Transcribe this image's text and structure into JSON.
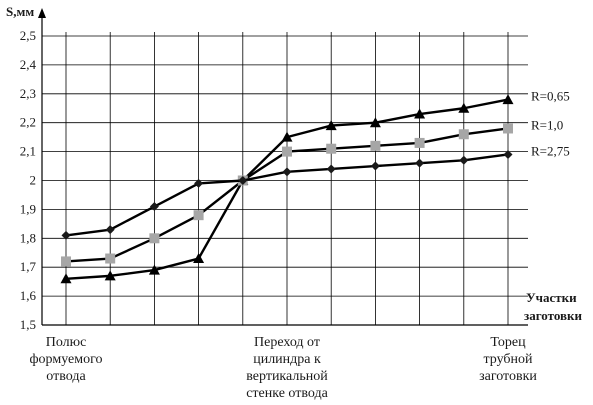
{
  "chart_data": {
    "type": "line",
    "ylabel": "S,мм",
    "xlabel_lines": [
      "Участки",
      "заготовки"
    ],
    "ylim": [
      1.5,
      2.5
    ],
    "yticks": [
      "1,5",
      "1,6",
      "1,7",
      "1,8",
      "1,9",
      "2",
      "2,1",
      "2,2",
      "2,3",
      "2,4",
      "2,5"
    ],
    "grid": true,
    "x_count": 11,
    "category_labels": [
      {
        "index": 0,
        "lines": [
          "Полюс",
          "формуемого",
          "отвода"
        ]
      },
      {
        "index": 5,
        "lines": [
          "Переход от",
          "цилиндра к",
          "вертикальной",
          "стенке отвода"
        ]
      },
      {
        "index": 10,
        "lines": [
          "Торец",
          "трубной",
          "заготовки"
        ]
      }
    ],
    "series": [
      {
        "name": "R=0,65",
        "marker": "triangle",
        "color": "#000000",
        "values": [
          1.66,
          1.67,
          1.69,
          1.73,
          2.0,
          2.15,
          2.19,
          2.2,
          2.23,
          2.25,
          2.28
        ]
      },
      {
        "name": "R=1,0",
        "marker": "square",
        "color": "#a6a6a6",
        "values": [
          1.72,
          1.73,
          1.8,
          1.88,
          2.0,
          2.1,
          2.11,
          2.12,
          2.13,
          2.16,
          2.18
        ]
      },
      {
        "name": "R=2,75",
        "marker": "diamond",
        "color": "#1a1a1a",
        "values": [
          1.81,
          1.83,
          1.91,
          1.99,
          2.0,
          2.03,
          2.04,
          2.05,
          2.06,
          2.07,
          2.09
        ]
      }
    ]
  }
}
